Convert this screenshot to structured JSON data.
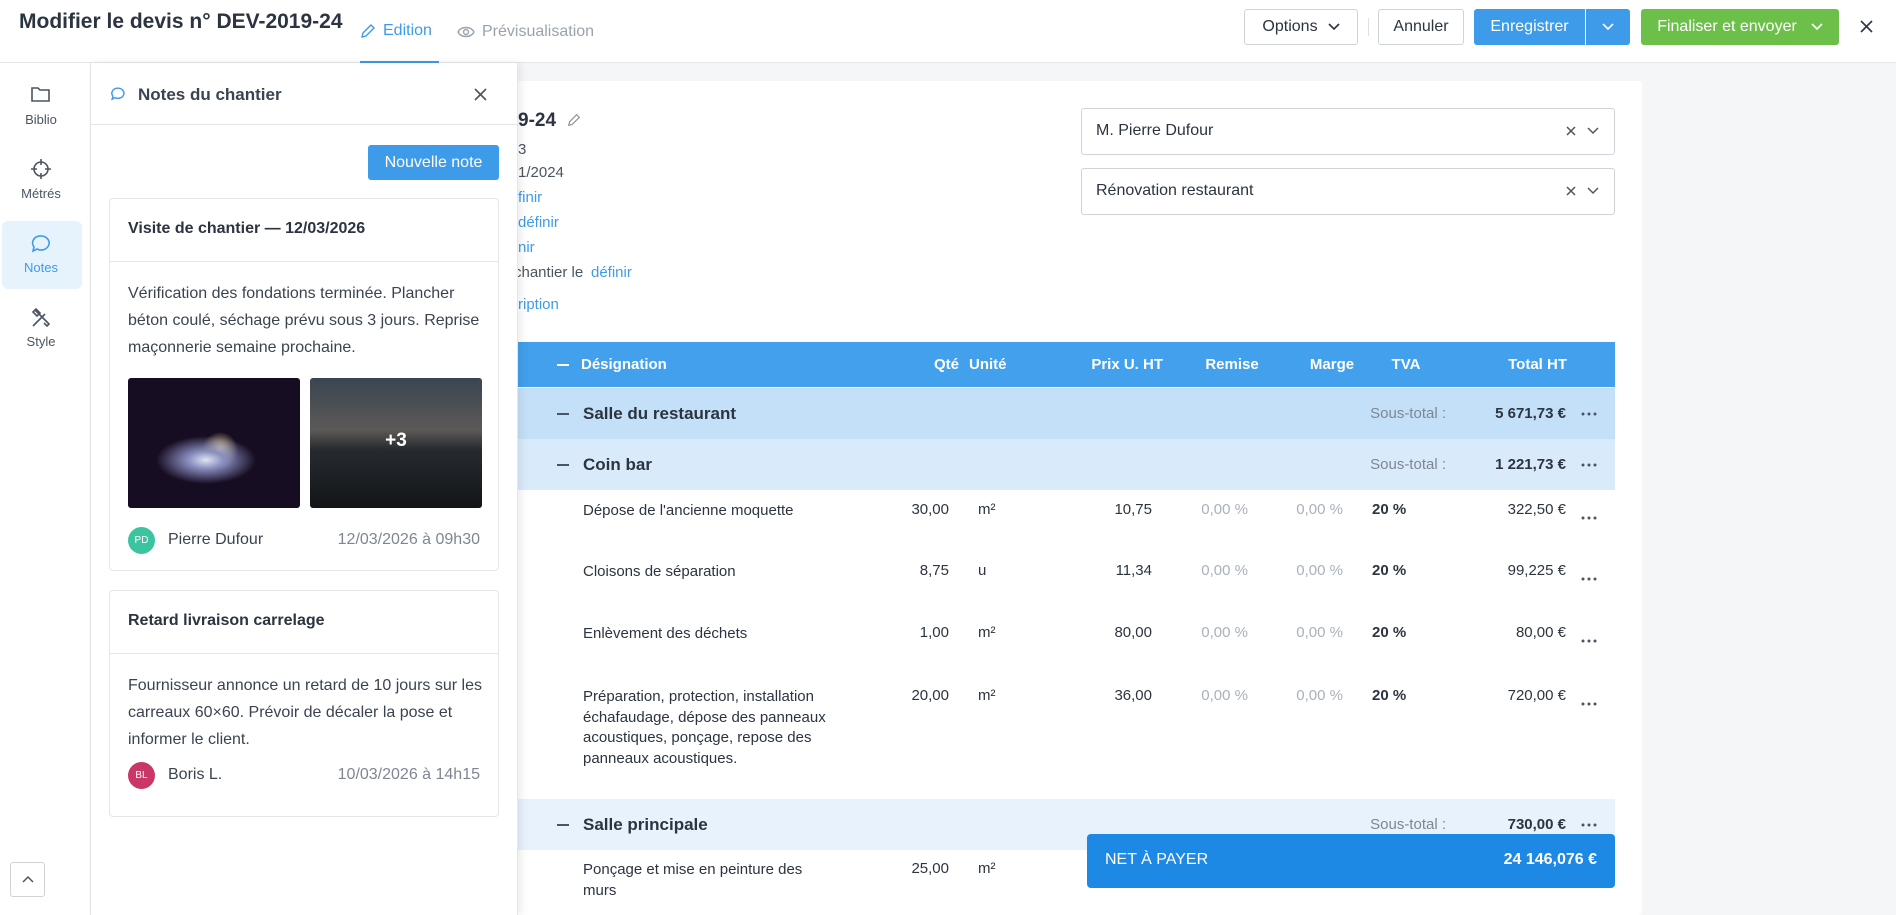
{
  "header": {
    "title": "Modifier le devis n° DEV-2019-24",
    "tabs": [
      "Edition",
      "Prévisualisation"
    ],
    "buttons": [
      "Options",
      "Annuler",
      "Enregistrer",
      "Finaliser et envoyer"
    ]
  },
  "sidebar": [
    "Biblio",
    "Métrés",
    "Notes",
    "Style"
  ],
  "notes_panel": {
    "title": "Notes du chantier",
    "new_note": "Nouvelle note",
    "notes": [
      {
        "title": "Visite de chantier — 12/03/2026",
        "text": "Vérification des fondations terminée. Plancher béton coulé, séchage prévu sous 3 jours. Reprise maçonnerie semaine prochaine.",
        "photos_more": "+3",
        "initials": "PD",
        "author": "Pierre Dufour",
        "date": "12/03/2026 à 09h30"
      },
      {
        "title": "Retard livraison carrelage",
        "text": "Fournisseur annonce un retard de 10 jours sur les carreaux 60×60. Prévoir de décaler la pose et informer le client.",
        "initials": "BL",
        "author": "Boris L.",
        "date": "10/03/2026 à 14h15"
      }
    ]
  },
  "document": {
    "fragments": [
      "9-24",
      "3",
      "1/2024",
      "finir",
      "définir",
      "nir",
      "chantier le",
      "définir",
      "ription"
    ],
    "client": "M. Pierre Dufour",
    "project": "Rénovation restaurant"
  },
  "table": {
    "columns": [
      "Désignation",
      "Qté",
      "Unité",
      "Prix U. HT",
      "Remise",
      "Marge",
      "TVA",
      "Total HT"
    ],
    "rows": [
      {
        "label": "Salle du restaurant",
        "subtotal_label": "Sous-total :",
        "subtotal": "5 671,73 €"
      },
      {
        "label": "Coin bar",
        "subtotal_label": "Sous-total :",
        "subtotal": "1 221,73 €"
      },
      {
        "cells": [
          "Dépose de l'ancienne moquette",
          "30,00",
          "m²",
          "10,75",
          "0,00 %",
          "0,00 %",
          "20 %",
          "322,50 €"
        ]
      },
      {
        "cells": [
          "Cloisons de séparation",
          "8,75",
          "u",
          "11,34",
          "0,00 %",
          "0,00 %",
          "20 %",
          "99,225 €"
        ]
      },
      {
        "cells": [
          "Enlèvement des déchets",
          "1,00",
          "m²",
          "80,00",
          "0,00 %",
          "0,00 %",
          "20 %",
          "80,00 €"
        ]
      },
      {
        "cells": [
          "Préparation, protection, installation échafaudage, dépose des panneaux acoustiques, ponçage, repose des panneaux acoustiques.",
          "20,00",
          "m²",
          "36,00",
          "0,00 %",
          "0,00 %",
          "20 %",
          "720,00 €"
        ]
      },
      {
        "label": "Salle principale",
        "subtotal_label": "Sous-total :",
        "subtotal": "730,00 €"
      },
      {
        "cells": [
          "Ponçage et mise en peinture des murs",
          "25,00",
          "m²"
        ]
      }
    ]
  },
  "net": {
    "label": "NET À PAYER",
    "value": "24 146,076 €"
  }
}
